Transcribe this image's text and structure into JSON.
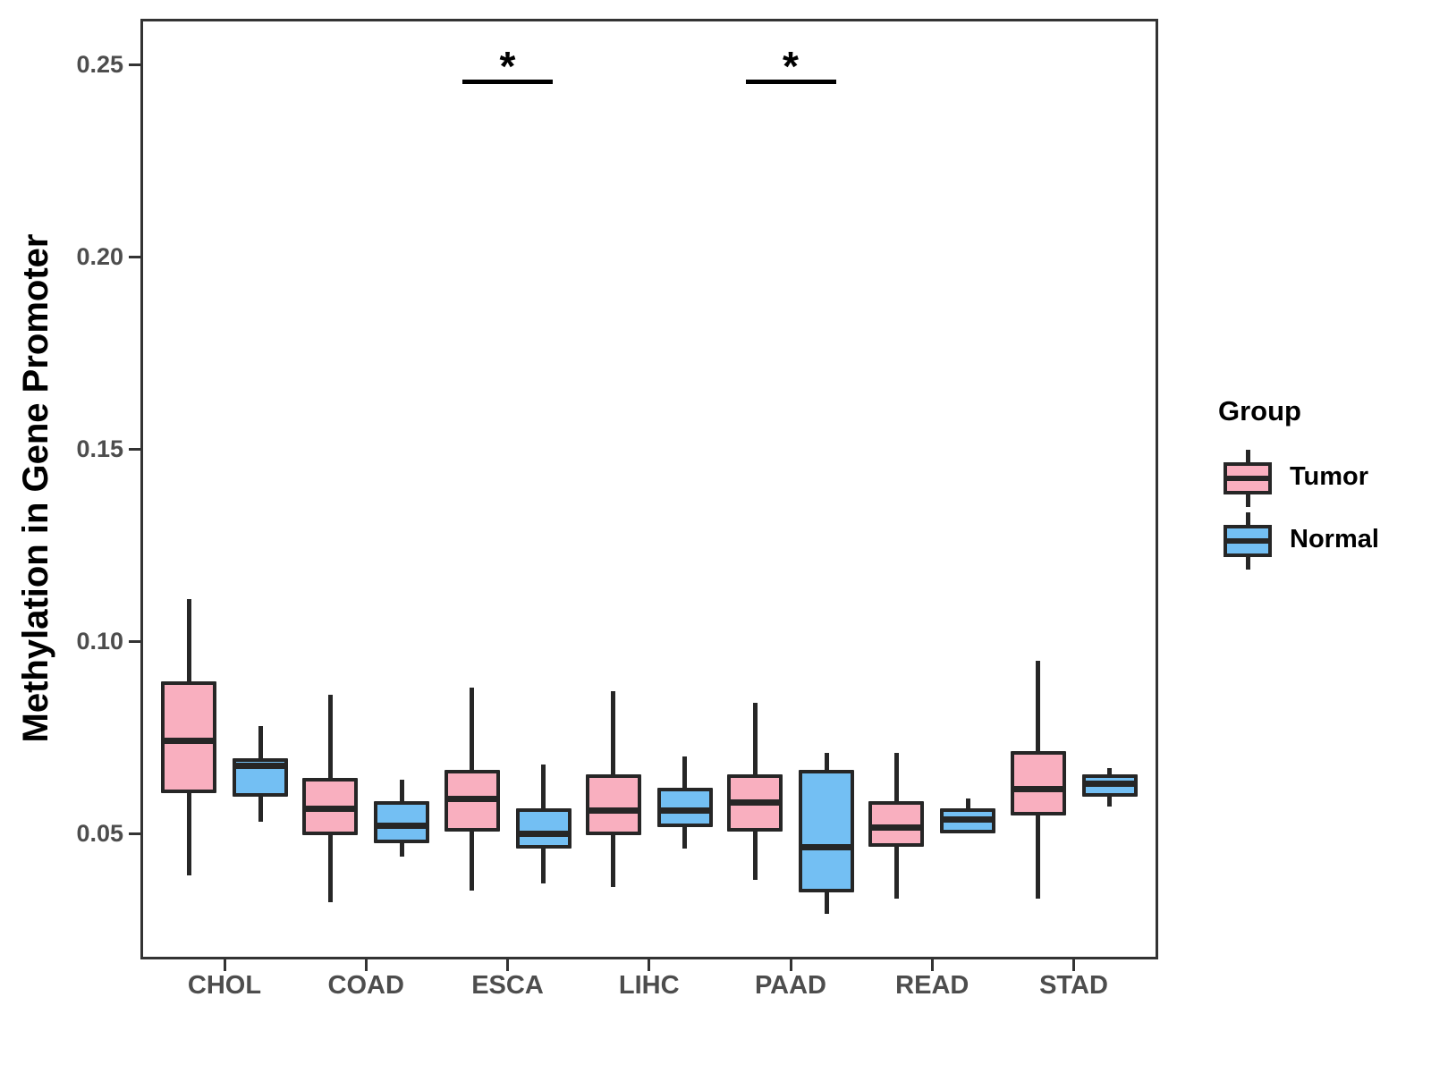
{
  "chart_data": {
    "type": "grouped_boxplot",
    "title": "",
    "xlabel": "",
    "ylabel": "Methylation in Gene Promoter",
    "legend_title": "Group",
    "legend_position": "right",
    "grid": false,
    "categories": [
      "CHOL",
      "COAD",
      "ESCA",
      "LIHC",
      "PAAD",
      "READ",
      "STAD"
    ],
    "y_ticks": [
      {
        "value": 0.25,
        "label": "0.25"
      },
      {
        "value": 0.2,
        "label": "0.20"
      },
      {
        "value": 0.15,
        "label": "0.15"
      },
      {
        "value": 0.1,
        "label": "0.10"
      },
      {
        "value": 0.05,
        "label": "0.05"
      }
    ],
    "ylim": [
      0.017,
      0.262
    ],
    "series": [
      {
        "name": "Tumor",
        "fill_color": "#F9AFBF",
        "boxes": [
          {
            "category": "CHOL",
            "whisker_low": 0.039,
            "q1": 0.061,
            "median": 0.074,
            "q3": 0.089,
            "whisker_high": 0.111
          },
          {
            "category": "COAD",
            "whisker_low": 0.032,
            "q1": 0.05,
            "median": 0.0565,
            "q3": 0.064,
            "whisker_high": 0.086
          },
          {
            "category": "ESCA",
            "whisker_low": 0.035,
            "q1": 0.051,
            "median": 0.059,
            "q3": 0.066,
            "whisker_high": 0.088
          },
          {
            "category": "LIHC",
            "whisker_low": 0.036,
            "q1": 0.05,
            "median": 0.056,
            "q3": 0.065,
            "whisker_high": 0.087
          },
          {
            "category": "PAAD",
            "whisker_low": 0.038,
            "q1": 0.051,
            "median": 0.058,
            "q3": 0.065,
            "whisker_high": 0.084
          },
          {
            "category": "READ",
            "whisker_low": 0.033,
            "q1": 0.047,
            "median": 0.0515,
            "q3": 0.058,
            "whisker_high": 0.071
          },
          {
            "category": "STAD",
            "whisker_low": 0.033,
            "q1": 0.055,
            "median": 0.0615,
            "q3": 0.071,
            "whisker_high": 0.095
          }
        ]
      },
      {
        "name": "Normal",
        "fill_color": "#73BFF3",
        "boxes": [
          {
            "category": "CHOL",
            "whisker_low": 0.053,
            "q1": 0.06,
            "median": 0.0675,
            "q3": 0.069,
            "whisker_high": 0.078
          },
          {
            "category": "COAD",
            "whisker_low": 0.044,
            "q1": 0.048,
            "median": 0.052,
            "q3": 0.058,
            "whisker_high": 0.064
          },
          {
            "category": "ESCA",
            "whisker_low": 0.037,
            "q1": 0.0465,
            "median": 0.05,
            "q3": 0.056,
            "whisker_high": 0.068
          },
          {
            "category": "LIHC",
            "whisker_low": 0.046,
            "q1": 0.052,
            "median": 0.056,
            "q3": 0.0615,
            "whisker_high": 0.07
          },
          {
            "category": "PAAD",
            "whisker_low": 0.029,
            "q1": 0.035,
            "median": 0.0465,
            "q3": 0.066,
            "whisker_high": 0.071
          },
          {
            "category": "READ",
            "whisker_low": 0.05,
            "q1": 0.0505,
            "median": 0.0535,
            "q3": 0.056,
            "whisker_high": 0.059
          },
          {
            "category": "STAD",
            "whisker_low": 0.057,
            "q1": 0.06,
            "median": 0.063,
            "q3": 0.065,
            "whisker_high": 0.067
          }
        ]
      }
    ],
    "significance_markers": [
      {
        "category": "ESCA",
        "label": "*",
        "bar_y_value": 0.2455,
        "compares": [
          "Tumor",
          "Normal"
        ]
      },
      {
        "category": "PAAD",
        "label": "*",
        "bar_y_value": 0.2455,
        "compares": [
          "Tumor",
          "Normal"
        ]
      }
    ],
    "colors": {
      "box_stroke": "#262626",
      "panel_border": "#333333",
      "tick_text": "#4D4D4D",
      "title_text": "#000000",
      "significance": "#000000"
    }
  }
}
